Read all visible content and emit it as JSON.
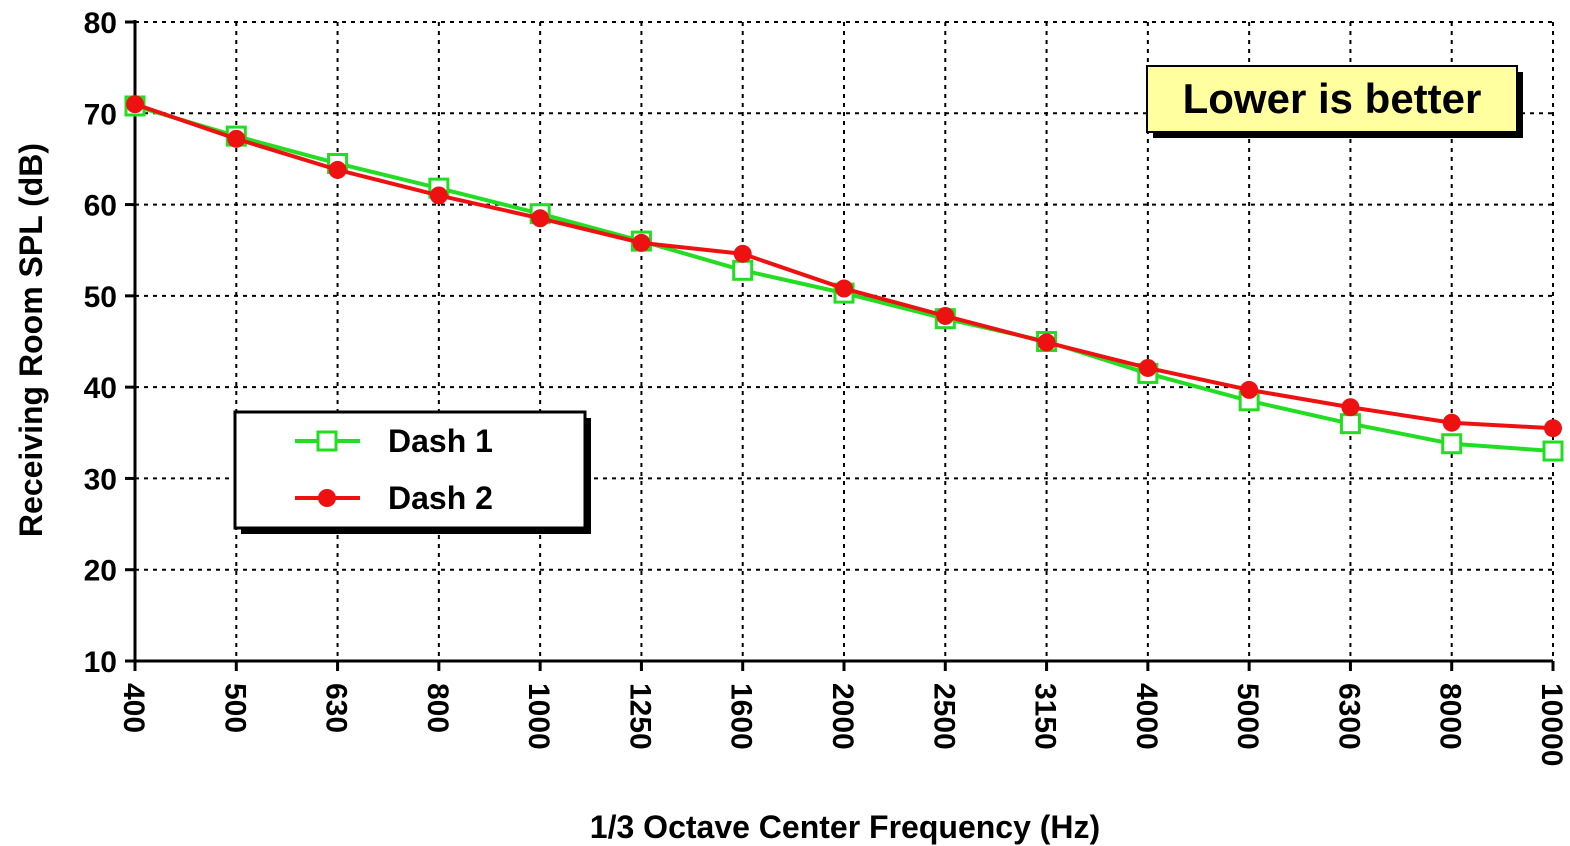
{
  "chart_data": {
    "type": "line",
    "x_label": "1/3 Octave Center Frequency (Hz)",
    "y_label": "Receiving Room SPL (dB)",
    "annotation": "Lower is better",
    "categories": [
      "400",
      "500",
      "630",
      "800",
      "1000",
      "1250",
      "1600",
      "2000",
      "2500",
      "3150",
      "4000",
      "5000",
      "6300",
      "8000",
      "10000"
    ],
    "series": [
      {
        "name": "Dash 1",
        "color": "#22dd22",
        "marker": "square",
        "values": [
          70.8,
          67.5,
          64.5,
          61.8,
          59,
          56,
          52.8,
          50.3,
          47.5,
          45,
          41.5,
          38.5,
          36,
          33.8,
          33
        ]
      },
      {
        "name": "Dash 2",
        "color": "#ee1111",
        "marker": "circle",
        "values": [
          71,
          67.2,
          63.8,
          61,
          58.5,
          55.8,
          54.6,
          50.8,
          47.8,
          44.9,
          42.1,
          39.7,
          37.8,
          36.1,
          35.5
        ]
      }
    ],
    "ylim": [
      10,
      80
    ],
    "yticks": [
      10,
      20,
      30,
      40,
      50,
      60,
      70,
      80
    ],
    "grid": true
  }
}
